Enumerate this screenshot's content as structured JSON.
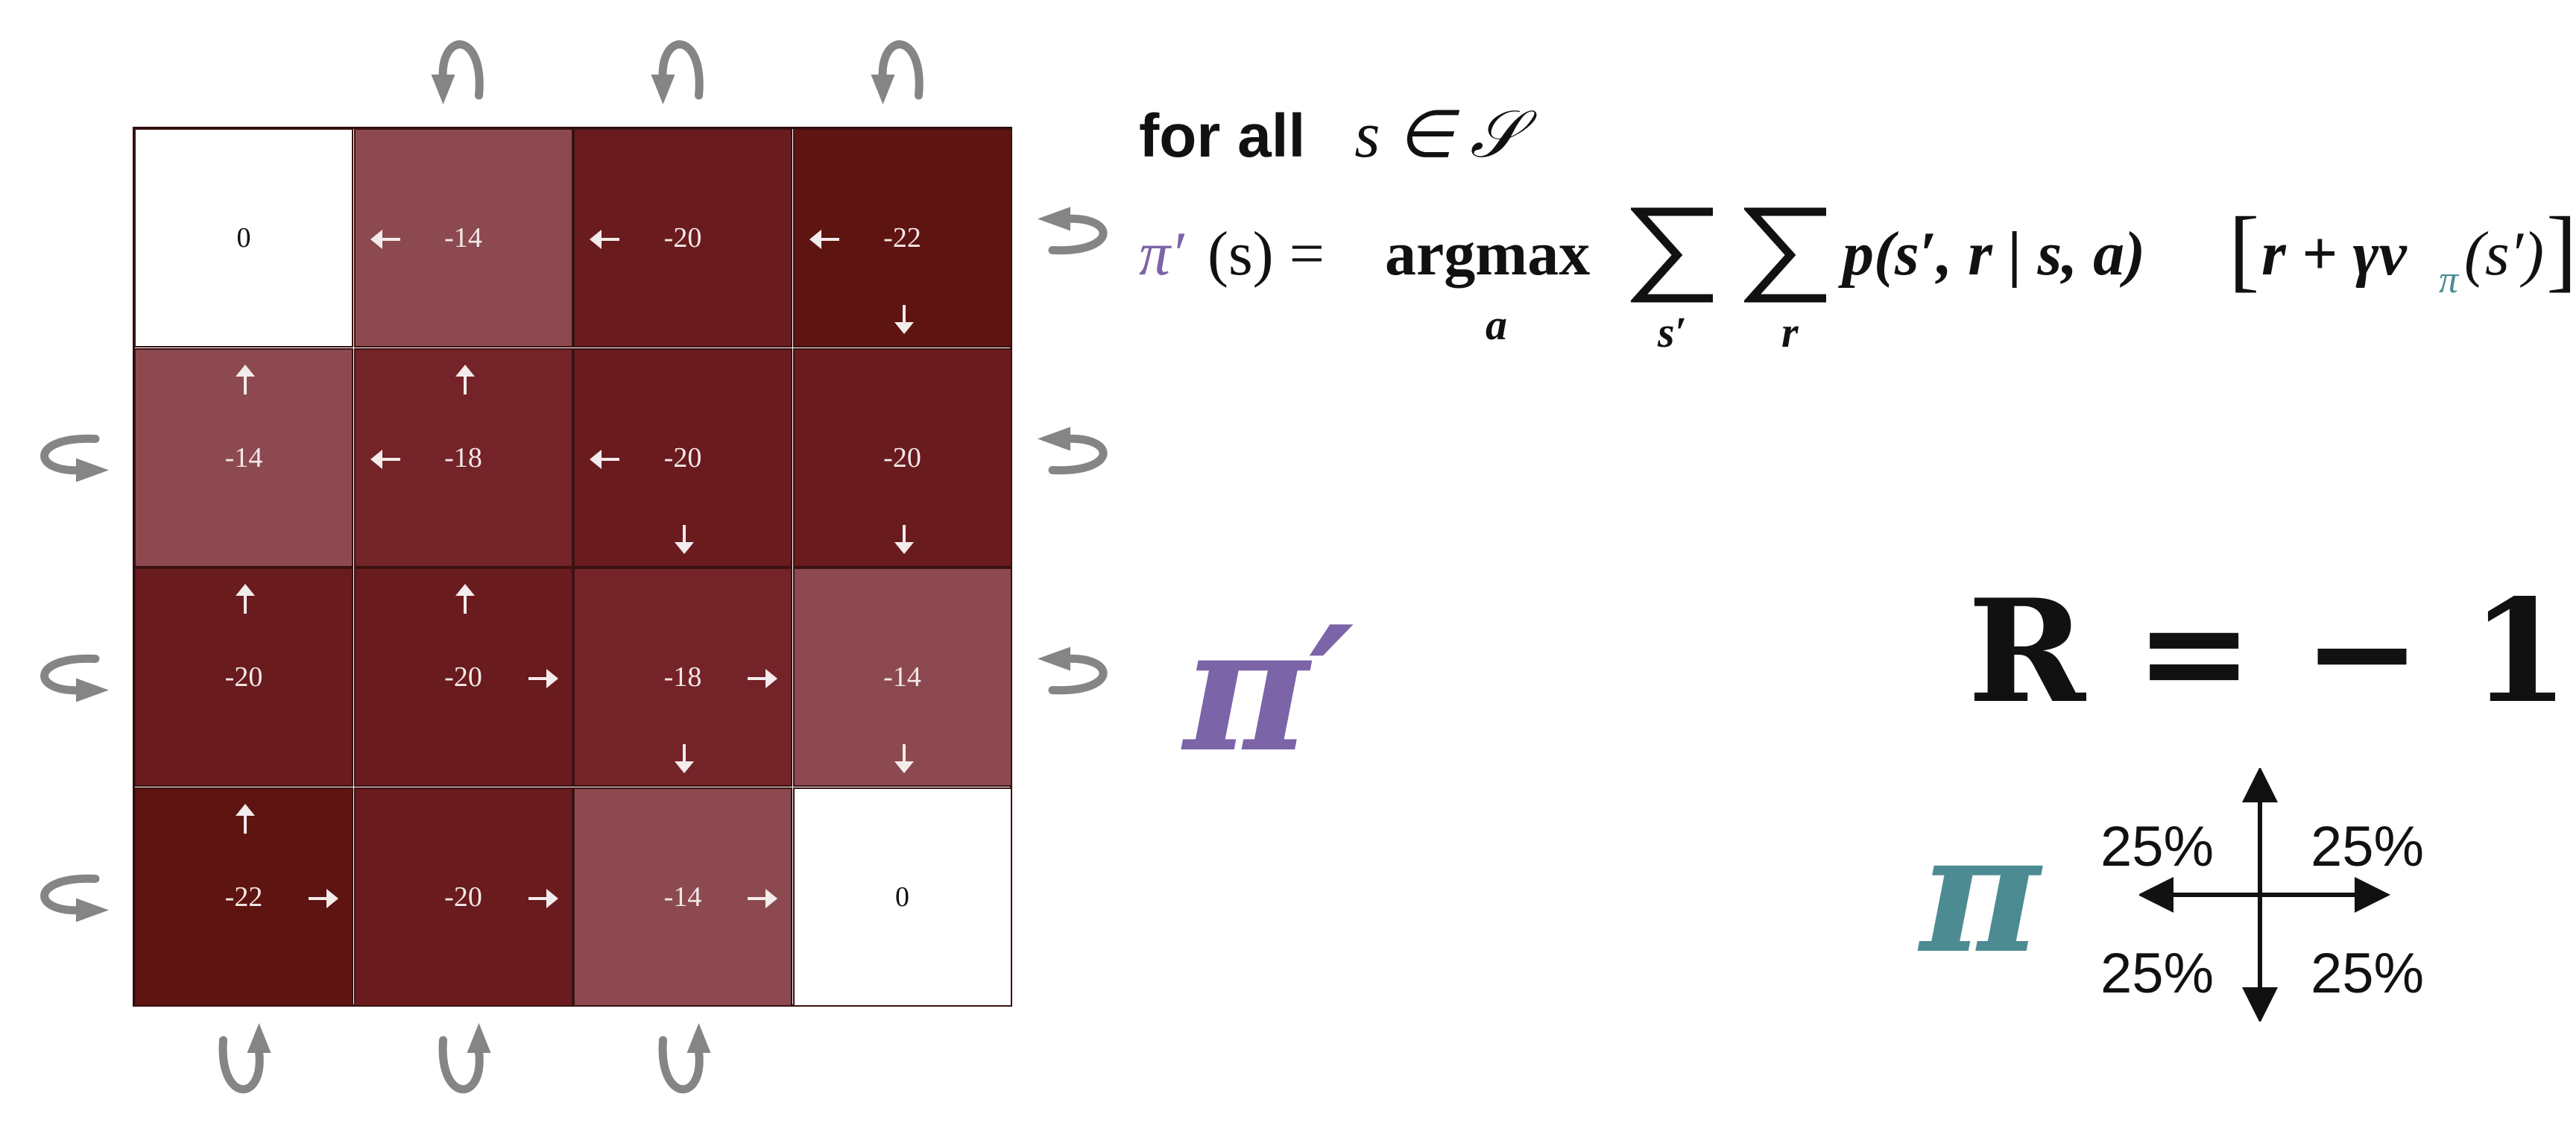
{
  "grid": {
    "rows": 4,
    "cols": 4,
    "values": [
      [
        "0",
        "-14",
        "-20",
        "-22"
      ],
      [
        "-14",
        "-18",
        "-20",
        "-20"
      ],
      [
        "-20",
        "-20",
        "-18",
        "-14"
      ],
      [
        "-22",
        "-20",
        "-14",
        "0"
      ]
    ],
    "policy_arrows": [
      [
        [],
        [
          "left"
        ],
        [
          "left"
        ],
        [
          "left",
          "down"
        ]
      ],
      [
        [
          "up"
        ],
        [
          "up",
          "left"
        ],
        [
          "left",
          "down"
        ],
        [
          "down"
        ]
      ],
      [
        [
          "up"
        ],
        [
          "up",
          "right"
        ],
        [
          "right",
          "down"
        ],
        [
          "down"
        ]
      ],
      [
        [
          "up",
          "right"
        ],
        [
          "right"
        ],
        [
          "right"
        ],
        []
      ]
    ],
    "colors": {
      "terminal": "#ffffff",
      "value_0": "#ffffff",
      "value_14": "#8c4a50",
      "value_18": "#742328",
      "value_20": "#6a1b1e",
      "value_22": "#5e1410",
      "arrow": "#f4ecec",
      "boundary_arrow": "#858585"
    }
  },
  "formula": {
    "for_all": "for all",
    "s_in_S": "s ∈ 𝒮",
    "lhs_pi": "π′",
    "lhs_rest": "(s) =",
    "argmax": "argmax",
    "argmax_sub": "a",
    "sum1_sub": "s′",
    "sum2_sub": "r",
    "body_p": "p(s′, r | s, a)",
    "bracket_open": "[",
    "body_r": "r + γv",
    "v_sub": "π",
    "body_tail": "(s′)",
    "bracket_close": "]",
    "color_pi_prime": "#7c64a8",
    "color_pi": "#4d8b93"
  },
  "labels": {
    "pi_prime": "π′",
    "reward": "R = − 1",
    "pi": "π",
    "pct_top_left": "25%",
    "pct_top_right": "25%",
    "pct_bottom_left": "25%",
    "pct_bottom_right": "25%"
  }
}
